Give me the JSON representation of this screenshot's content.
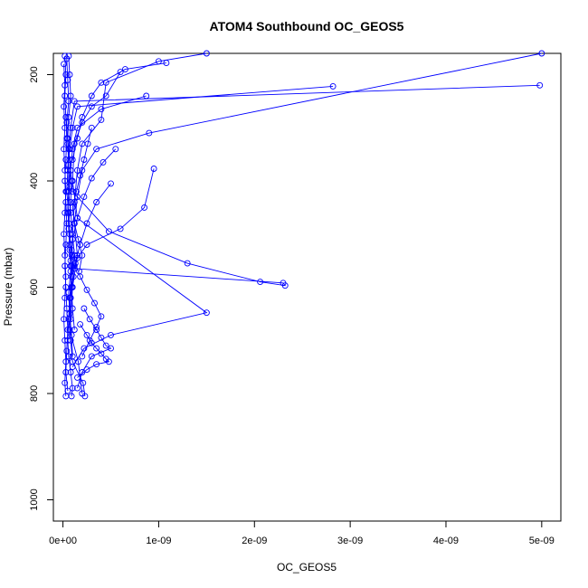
{
  "chart_data": {
    "type": "line",
    "title": "ATOM4 Southbound OC_GEOS5",
    "xlabel": "OC_GEOS5",
    "ylabel": "Pressure (mbar)",
    "xlim": [
      -1e-10,
      5.2e-09
    ],
    "ylim": [
      1040,
      160
    ],
    "y_reversed": true,
    "grid": false,
    "marker": "open-circle",
    "color": "#0000ff",
    "x_ticks": [
      0,
      1e-09,
      2e-09,
      3e-09,
      4e-09,
      5e-09
    ],
    "x_tick_labels": [
      "0e+00",
      "1e-09",
      "2e-09",
      "3e-09",
      "4e-09",
      "5e-09"
    ],
    "y_ticks": [
      200,
      400,
      600,
      800,
      1000
    ],
    "y_tick_labels": [
      "200",
      "400",
      "600",
      "800",
      "1000"
    ],
    "series": [
      {
        "x": [
          4.98e-09,
          1.2e-10,
          8e-11,
          6e-11,
          5e-11,
          4e-11,
          6e-11,
          7e-11,
          9e-11,
          1.1e-10,
          8e-11,
          6e-11,
          5e-11,
          6e-11,
          8e-11,
          1e-10,
          9e-11
        ],
        "y": [
          220,
          250,
          300,
          340,
          380,
          420,
          460,
          500,
          540,
          580,
          620,
          660,
          700,
          730,
          760,
          790,
          805
        ]
      },
      {
        "x": [
          2.82e-09,
          1.5e-10,
          1e-10,
          7e-11,
          5e-11,
          6e-11,
          8e-11,
          1e-10,
          1.2e-10,
          9e-11,
          7e-11,
          6e-11,
          8e-11,
          1e-10,
          2.1e-10,
          2.3e-10
        ],
        "y": [
          222,
          260,
          300,
          340,
          380,
          420,
          460,
          500,
          540,
          580,
          620,
          660,
          700,
          740,
          780,
          805
        ]
      },
      {
        "x": [
          1.5e-09,
          1e-09,
          4.5e-10,
          4e-10,
          2e-10,
          1.5e-10,
          1.2e-10,
          1e-10,
          9e-11,
          8e-11,
          7e-11,
          1.6e-10,
          2e-10
        ],
        "y": [
          160,
          175,
          215,
          285,
          330,
          380,
          440,
          500,
          560,
          620,
          680,
          740,
          800
        ]
      },
      {
        "x": [
          5e-09,
          9e-10,
          3.5e-10,
          2e-10,
          1.5e-10,
          1.2e-10,
          1.5e-10,
          1e-10,
          8e-11
        ],
        "y": [
          160,
          310,
          340,
          380,
          430,
          480,
          540,
          600,
          660
        ]
      },
      {
        "x": [
          9.5e-10,
          8.5e-10,
          6e-10,
          2.5e-10,
          1.5e-10,
          1.2e-10,
          2.3e-09,
          2.32e-09,
          2.06e-09,
          1.3e-09,
          4.8e-10,
          1e-10,
          8e-11
        ],
        "y": [
          377,
          450,
          490,
          520,
          545,
          565,
          592,
          597,
          590,
          555,
          495,
          420,
          380
        ]
      },
      {
        "x": [
          8.7e-10,
          4e-10,
          1.5e-10,
          1e-10,
          8e-11,
          6e-11,
          5e-11
        ],
        "y": [
          240,
          265,
          300,
          340,
          380,
          420,
          460
        ]
      },
      {
        "x": [
          1.08e-09,
          6.5e-10,
          4e-10,
          3e-10,
          2e-10,
          1.5e-10,
          1e-10
        ],
        "y": [
          178,
          190,
          215,
          240,
          280,
          320,
          360
        ]
      },
      {
        "x": [
          6e-10,
          4.5e-10,
          3e-10,
          2e-10,
          1.2e-10,
          1e-10,
          1.5e-10,
          1.5e-09,
          5e-10,
          2.2e-10,
          1e-10
        ],
        "y": [
          195,
          240,
          260,
          290,
          330,
          400,
          470,
          648,
          690,
          715,
          750
        ]
      },
      {
        "x": [
          5.5e-10,
          4.2e-10,
          3e-10,
          2.2e-10,
          1.5e-10,
          1e-10,
          8e-11
        ],
        "y": [
          340,
          365,
          395,
          430,
          470,
          510,
          550
        ]
      },
      {
        "x": [
          5e-10,
          3.5e-10,
          2.5e-10,
          1.8e-10,
          1.2e-10,
          9e-11
        ],
        "y": [
          405,
          440,
          480,
          520,
          560,
          600
        ]
      },
      {
        "x": [
          6e-11,
          7e-11,
          8e-11,
          6e-11,
          5e-11,
          7e-11,
          9e-11,
          8e-11,
          6e-11,
          7e-11,
          8e-11,
          9e-11,
          1e-10,
          1.2e-10
        ],
        "y": [
          165,
          200,
          240,
          280,
          320,
          360,
          400,
          440,
          480,
          520,
          560,
          600,
          640,
          680
        ]
      },
      {
        "x": [
          4e-11,
          5e-11,
          6e-11,
          4e-11,
          5e-11,
          6e-11,
          7e-11,
          5e-11,
          6e-11,
          7e-11,
          8e-11,
          6e-11,
          7e-11,
          9e-11,
          1e-10
        ],
        "y": [
          170,
          210,
          250,
          290,
          330,
          370,
          410,
          450,
          490,
          530,
          570,
          610,
          650,
          690,
          730
        ]
      },
      {
        "x": [
          2e-11,
          3e-11,
          2e-11,
          3e-11,
          4e-11,
          3e-11,
          2e-11,
          3e-11,
          4e-11,
          3e-11,
          2e-11,
          3e-11,
          4e-11,
          5e-11,
          4e-11,
          3e-11,
          5e-11
        ],
        "y": [
          165,
          200,
          240,
          280,
          320,
          360,
          400,
          440,
          480,
          520,
          560,
          600,
          640,
          680,
          720,
          760,
          795
        ]
      },
      {
        "x": [
          1e-11,
          2e-11,
          1e-11,
          2e-11,
          1e-11,
          2e-11,
          3e-11,
          2e-11,
          1e-11,
          2e-11,
          3e-11,
          2e-11,
          1e-11,
          2e-11,
          3e-11,
          2e-11,
          3e-11
        ],
        "y": [
          180,
          220,
          260,
          300,
          340,
          380,
          420,
          460,
          500,
          540,
          580,
          620,
          660,
          700,
          740,
          780,
          805
        ]
      },
      {
        "x": [
          1.8e-10,
          2.5e-10,
          3e-10,
          3.5e-10,
          4e-10,
          4.5e-10,
          4.8e-10,
          3.5e-10,
          2.5e-10,
          1.5e-10
        ],
        "y": [
          670,
          690,
          705,
          715,
          725,
          735,
          740,
          745,
          755,
          770
        ]
      },
      {
        "x": [
          2.2e-10,
          2.8e-10,
          3.5e-10,
          4e-10,
          4.5e-10,
          5e-10,
          3e-10,
          2e-10,
          1.5e-10
        ],
        "y": [
          640,
          660,
          680,
          695,
          710,
          715,
          730,
          760,
          790
        ]
      },
      {
        "x": [
          9e-11,
          1.3e-10,
          1.8e-10,
          2.5e-10,
          3.3e-10,
          4e-10,
          3.5e-10,
          2.8e-10,
          2e-10
        ],
        "y": [
          530,
          555,
          580,
          605,
          630,
          655,
          675,
          700,
          730
        ]
      },
      {
        "x": [
          3e-10,
          2.6e-10,
          2.2e-10,
          1.8e-10,
          1.4e-10,
          1e-10,
          1.2e-10,
          1.6e-10,
          2e-10,
          1.7e-10
        ],
        "y": [
          300,
          330,
          360,
          390,
          420,
          450,
          480,
          510,
          540,
          570
        ]
      }
    ]
  }
}
